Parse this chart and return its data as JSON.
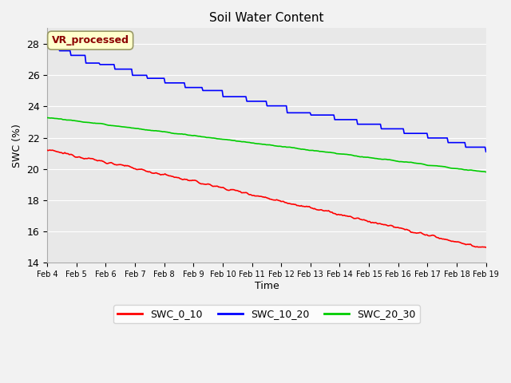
{
  "title": "Soil Water Content",
  "xlabel": "Time",
  "ylabel": "SWC (%)",
  "annotation_text": "VR_processed",
  "annotation_color": "#8B0000",
  "annotation_bg": "#FFFFCC",
  "annotation_border": "#999966",
  "ylim": [
    14,
    29
  ],
  "yticks": [
    14,
    16,
    18,
    20,
    22,
    24,
    26,
    28
  ],
  "background_color": "#E8E8E8",
  "grid_color": "#FFFFFF",
  "swc_10_20_color": "#0000FF",
  "swc_0_10_color": "#FF0000",
  "swc_20_30_color": "#00CC00",
  "xtick_labels": [
    "Feb 4",
    "Feb 5",
    "Feb 6",
    "Feb 7",
    "Feb 8",
    "Feb 9",
    "Feb 10",
    "Feb 11",
    "Feb 12",
    "Feb 13",
    "Feb 14",
    "Feb 15",
    "Feb 16",
    "Feb 17",
    "Feb 18",
    "Feb 19"
  ],
  "legend_labels": [
    "SWC_0_10",
    "SWC_10_20",
    "SWC_20_30"
  ],
  "legend_colors": [
    "#FF0000",
    "#0000FF",
    "#00CC00"
  ],
  "figsize": [
    6.4,
    4.8
  ],
  "dpi": 100
}
